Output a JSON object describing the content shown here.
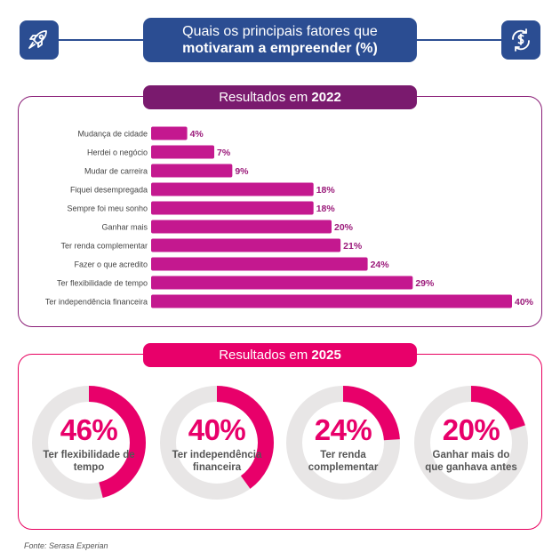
{
  "header": {
    "title_line1": "Quais os principais fatores que",
    "title_line2": "motivaram a empreender (%)",
    "left_icon": "rocket-icon",
    "right_icon": "money-cycle-icon"
  },
  "colors": {
    "navy": "#2b4d92",
    "purple": "#7a1a6e",
    "magenta_bar": "#c4188f",
    "pink": "#e8006a",
    "track": "#e8e6e6"
  },
  "section_2022": {
    "prefix": "Resultados em ",
    "year": "2022"
  },
  "section_2025": {
    "prefix": "Resultados em ",
    "year": "2025"
  },
  "chart_data": [
    {
      "type": "bar",
      "orientation": "horizontal",
      "categories": [
        "Mudança de cidade",
        "Herdei o negócio",
        "Mudar de carreira",
        "Fiquei desempregada",
        "Sempre foi meu sonho",
        "Ganhar mais",
        "Ter renda complementar",
        "Fazer o que acredito",
        "Ter flexibilidade de tempo",
        "Ter independência financeira"
      ],
      "values": [
        4,
        7,
        9,
        18,
        18,
        20,
        21,
        24,
        29,
        40
      ],
      "value_labels": [
        "4%",
        "7%",
        "9%",
        "18%",
        "18%",
        "20%",
        "21%",
        "24%",
        "29%",
        "40%"
      ],
      "title": "",
      "xlabel": "",
      "ylabel": "",
      "xlim": [
        0,
        40
      ],
      "grid": false,
      "legend": false
    },
    {
      "type": "pie",
      "style": "donut",
      "items": [
        {
          "value": 46,
          "pct_label": "46%",
          "label": "Ter flexibilidade de tempo"
        },
        {
          "value": 40,
          "pct_label": "40%",
          "label": "Ter independência financeira"
        },
        {
          "value": 24,
          "pct_label": "24%",
          "label": "Ter renda complementar"
        },
        {
          "value": 20,
          "pct_label": "20%",
          "label": "Ganhar mais do que ganhava antes"
        }
      ]
    }
  ],
  "footer": {
    "source": "Fonte: Serasa Experian"
  }
}
